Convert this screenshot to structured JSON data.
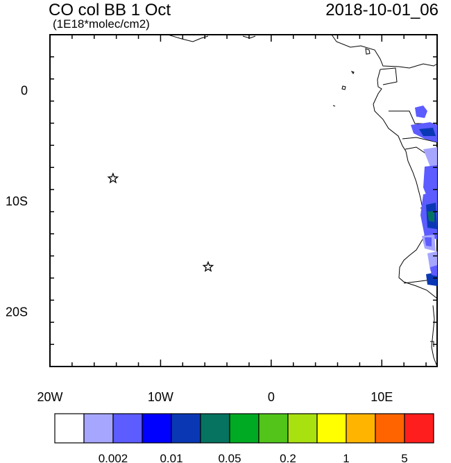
{
  "header": {
    "title": "CO col BB 1 Oct",
    "units": "(1E18*molec/cm2)",
    "datetime": "2018-10-01_06"
  },
  "map": {
    "lon_range": [
      -20,
      15
    ],
    "lat_range": [
      -25,
      5
    ],
    "x_ticks": [
      {
        "lon": -20,
        "label": "20W"
      },
      {
        "lon": -10,
        "label": "10W"
      },
      {
        "lon": 0,
        "label": "0"
      },
      {
        "lon": 10,
        "label": "10E"
      }
    ],
    "y_ticks": [
      {
        "lat": 0,
        "label": "0"
      },
      {
        "lat": -10,
        "label": "10S"
      },
      {
        "lat": -20,
        "label": "20S"
      }
    ],
    "stars": [
      {
        "lon": -14.3,
        "lat": -8.0
      },
      {
        "lon": -5.7,
        "lat": -16.0
      }
    ]
  },
  "colorbar": {
    "colors": [
      "#ffffff",
      "#a6a6ff",
      "#5c5cff",
      "#0000ff",
      "#0a38b4",
      "#067360",
      "#00aa22",
      "#52c41a",
      "#a8e010",
      "#ffff00",
      "#ffb400",
      "#ff6400",
      "#ff1e1e"
    ],
    "labels": [
      {
        "after_box": 2,
        "text": "0.002"
      },
      {
        "after_box": 4,
        "text": "0.01"
      },
      {
        "after_box": 6,
        "text": "0.05"
      },
      {
        "after_box": 8,
        "text": "0.2"
      },
      {
        "after_box": 10,
        "text": "1"
      },
      {
        "after_box": 12,
        "text": "5"
      }
    ]
  }
}
